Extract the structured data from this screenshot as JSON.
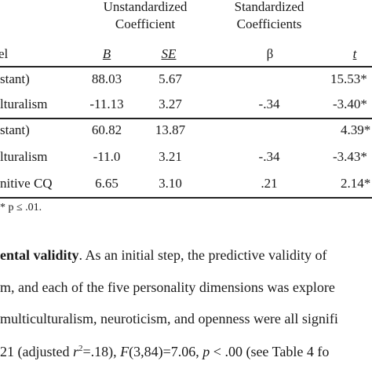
{
  "table": {
    "group_headers": {
      "unstandardized_1": "Unstandardized",
      "unstandardized_2": "Coefficient",
      "standardized_1": "Standardized",
      "standardized_2": "Coefficients"
    },
    "columns": {
      "model": "el",
      "b": "B",
      "se": "SE",
      "beta": "β",
      "t": "t"
    },
    "rows": [
      {
        "label": "stant)",
        "b": "88.03",
        "se": "5.67",
        "beta": "",
        "t": "15.53*"
      },
      {
        "label": "lturalism",
        "b": "-11.13",
        "se": "3.27",
        "beta": "-.34",
        "t": "-3.40*"
      },
      {
        "label": "stant)",
        "b": "60.82",
        "se": "13.87",
        "beta": "",
        "t": "4.39*"
      },
      {
        "label": "lturalism",
        "b": "-11.0",
        "se": "3.21",
        "beta": "-.34",
        "t": "-3.43*"
      },
      {
        "label": "nitive CQ",
        "b": "6.65",
        "se": "3.10",
        "beta": ".21",
        "t": "2.14*"
      }
    ],
    "note": "* p ≤ .01."
  },
  "body_text": {
    "line1_bold": "ental validity",
    "line1_rest": ". As an initial step, the predictive validity of",
    "line2": "m, and each of the five personality dimensions was explore",
    "line3": "multiculturalism, neuroticism, and openness were all signifi",
    "line4_a": "21 (adjusted ",
    "line4_r": "r",
    "line4_sup": "2",
    "line4_b": "=.18), ",
    "line4_F": "F",
    "line4_c": "(3,84)=7.06, ",
    "line4_p": "p",
    "line4_d": " < .00 (see Table 4 fo"
  }
}
